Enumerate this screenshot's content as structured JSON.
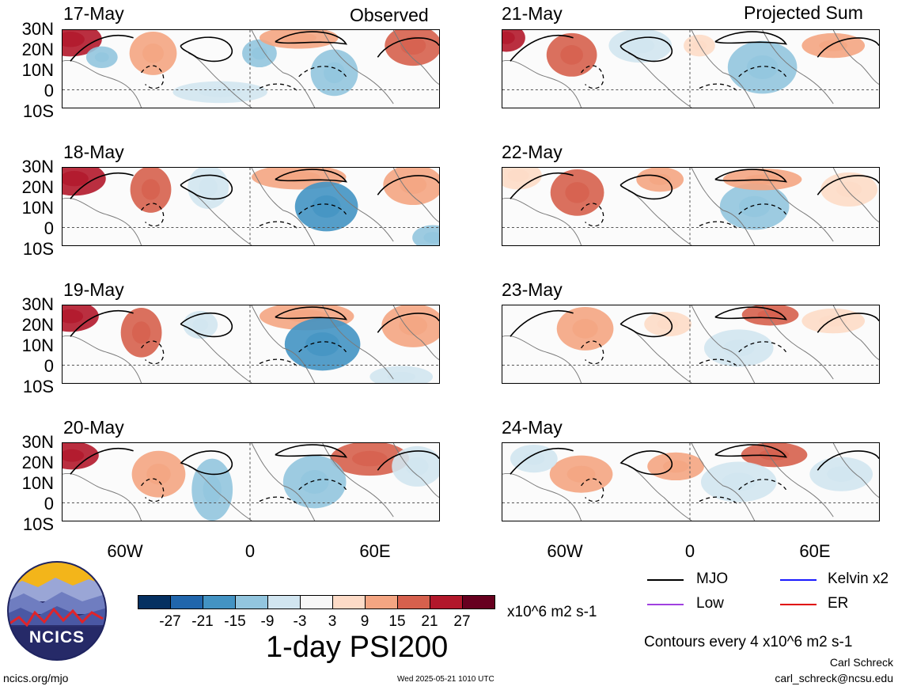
{
  "panels": {
    "observed_title": "Observed",
    "projected_title": "Projected Sum",
    "left_dates": [
      "17-May",
      "18-May",
      "19-May",
      "20-May"
    ],
    "right_dates": [
      "21-May",
      "22-May",
      "23-May",
      "24-May"
    ]
  },
  "lat_labels": [
    "30N",
    "20N",
    "10N",
    "0",
    "10S"
  ],
  "lon_labels": [
    "60W",
    "0",
    "60E"
  ],
  "colorbar": {
    "colors": [
      "#053061",
      "#2166ac",
      "#4393c3",
      "#92c5de",
      "#d1e5f0",
      "#f7f7f7",
      "#fddbc7",
      "#f4a582",
      "#d6604d",
      "#b2182b",
      "#67001f"
    ],
    "labels": [
      "-27",
      "-21",
      "-15",
      "-9",
      "-3",
      "3",
      "9",
      "15",
      "21",
      "27"
    ],
    "units": "x10^6 m2 s-1"
  },
  "title": "1-day PSI200",
  "legend": {
    "items": [
      {
        "label": "MJO",
        "color": "#000000"
      },
      {
        "label": "Kelvin x2",
        "color": "#1a1aff"
      },
      {
        "label": "Low",
        "color": "#a040e0"
      },
      {
        "label": "ER",
        "color": "#e00000"
      }
    ],
    "contour_note": "Contours every 4 x10^6 m2 s-1"
  },
  "logo_text": "NCICS",
  "footer": {
    "url": "ncics.org/mjo",
    "timestamp": "Wed 2025-05-21 1010 UTC",
    "author": "Carl Schreck",
    "email": "carl_schreck@ncsu.edu"
  }
}
